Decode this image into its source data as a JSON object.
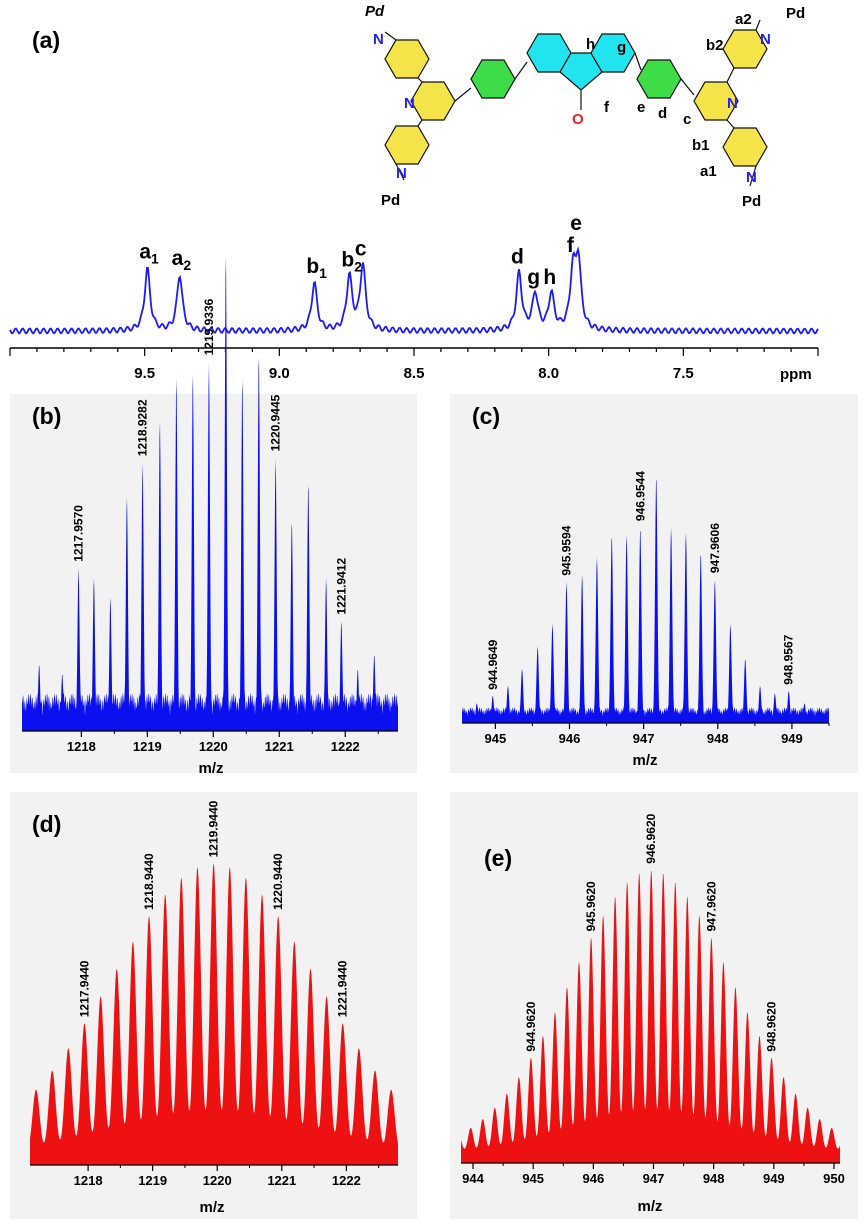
{
  "chart_data": [
    {
      "panel": "(a)",
      "type": "line",
      "xlabel": "ppm",
      "xlim": [
        10.0,
        7.0
      ],
      "xticks": [
        9.5,
        9.0,
        8.5,
        8.0,
        7.5
      ],
      "xtick_labels": [
        "9.5",
        "9.0",
        "8.5",
        "8.0",
        "7.5"
      ],
      "series_color": "#1a1aff",
      "peaks": [
        {
          "label": "a",
          "sub": "1",
          "ppm": 9.49,
          "height": 0.78
        },
        {
          "label": "a",
          "sub": "2",
          "ppm": 9.37,
          "height": 0.7
        },
        {
          "label": "b",
          "sub": "1",
          "ppm": 8.87,
          "height": 0.6
        },
        {
          "label": "b",
          "sub": "2",
          "ppm": 8.74,
          "height": 0.68
        },
        {
          "label": "c",
          "sub": "",
          "ppm": 8.69,
          "height": 0.82
        },
        {
          "label": "d",
          "sub": "",
          "ppm": 8.11,
          "height": 0.72
        },
        {
          "label": "g",
          "sub": "",
          "ppm": 8.05,
          "height": 0.46
        },
        {
          "label": "h",
          "sub": "",
          "ppm": 7.99,
          "height": 0.46
        },
        {
          "label": "e",
          "sub": "",
          "ppm": 7.89,
          "height": 0.84
        },
        {
          "label": "f",
          "sub": "",
          "ppm": 7.91,
          "height": 0.7
        }
      ],
      "structure": {
        "metal": "Pd",
        "nitrogen": "N",
        "oxygen": "O",
        "proton_labels": [
          "h",
          "g",
          "f",
          "e",
          "d",
          "c",
          "b2",
          "a2",
          "b1",
          "a1"
        ],
        "colors": {
          "pyridine": "#f5e34a",
          "phenyl": "#3fdc4a",
          "fluorenone": "#22e4ee",
          "nitrogen": "#2222ee",
          "oxygen": "#ee2222"
        }
      }
    },
    {
      "panel": "(b)",
      "type": "bar",
      "xlabel": "m/z",
      "xlim": [
        1217.1,
        1222.8
      ],
      "xticks": [
        "1218",
        "1219",
        "1220",
        "1221",
        "1222"
      ],
      "color": "#0a10ee",
      "peaks_mz": [
        1217.36,
        1217.71,
        1217.957,
        1218.19,
        1218.44,
        1218.69,
        1218.9282,
        1219.19,
        1219.44,
        1219.69,
        1219.9336,
        1220.19,
        1220.44,
        1220.69,
        1220.9445,
        1221.19,
        1221.44,
        1221.71,
        1221.9412,
        1222.19,
        1222.44
      ],
      "peaks_rel": [
        0.14,
        0.12,
        0.34,
        0.32,
        0.28,
        0.49,
        0.56,
        0.65,
        0.74,
        0.75,
        0.77,
        1.0,
        0.74,
        0.79,
        0.57,
        0.44,
        0.52,
        0.32,
        0.23,
        0.13,
        0.16
      ],
      "labels": [
        "1217.9570",
        "1218.9282",
        "1219.9336",
        "1220.9445",
        "1221.9412"
      ],
      "label_mz": [
        1217.957,
        1218.9282,
        1219.9336,
        1220.9445,
        1221.9412
      ]
    },
    {
      "panel": "(c)",
      "type": "bar",
      "xlabel": "m/z",
      "xlim": [
        944.55,
        949.5
      ],
      "xticks": [
        "945",
        "946",
        "947",
        "948",
        "949"
      ],
      "color": "#0a10ee",
      "peaks_mz": [
        944.75,
        944.9649,
        945.17,
        945.36,
        945.57,
        945.77,
        945.9594,
        946.17,
        946.37,
        946.57,
        946.77,
        946.9544,
        947.17,
        947.37,
        947.57,
        947.77,
        947.9606,
        948.17,
        948.37,
        948.57,
        948.77,
        948.9567,
        949.17,
        949.37
      ],
      "peaks_rel": [
        0.08,
        0.11,
        0.15,
        0.22,
        0.31,
        0.4,
        0.57,
        0.6,
        0.67,
        0.76,
        0.76,
        0.79,
        1.0,
        0.79,
        0.77,
        0.69,
        0.58,
        0.4,
        0.26,
        0.15,
        0.12,
        0.13,
        0.08,
        0.05
      ],
      "labels": [
        "944.9649",
        "945.9594",
        "946.9544",
        "947.9606",
        "948.9567"
      ],
      "label_mz": [
        944.9649,
        945.9594,
        946.9544,
        947.9606,
        948.9567
      ]
    },
    {
      "panel": "(d)",
      "type": "area",
      "xlabel": "m/z",
      "xlim": [
        1217.1,
        1222.8
      ],
      "xticks": [
        "1218",
        "1219",
        "1220",
        "1221",
        "1222"
      ],
      "color": "#ee1111",
      "center": 1219.944,
      "spacing": 0.25,
      "sigma": 1.58,
      "peak_count": 22,
      "labels": [
        "1217.9440",
        "1218.9440",
        "1219.9440",
        "1220.9440",
        "1221.9440"
      ],
      "label_mz": [
        1217.944,
        1218.944,
        1219.944,
        1220.944,
        1221.944
      ]
    },
    {
      "panel": "(e)",
      "type": "area",
      "xlabel": "m/z",
      "xlim": [
        943.8,
        950.1
      ],
      "xticks": [
        "944",
        "945",
        "946",
        "947",
        "948",
        "949",
        "950"
      ],
      "color": "#ee1111",
      "center": 946.962,
      "spacing": 0.2,
      "sigma": 1.35,
      "peak_count": 32,
      "labels": [
        "944.9620",
        "945.9620",
        "946.9620",
        "947.9620",
        "948.9620"
      ],
      "label_mz": [
        944.962,
        945.962,
        946.962,
        947.962,
        948.962
      ]
    }
  ]
}
